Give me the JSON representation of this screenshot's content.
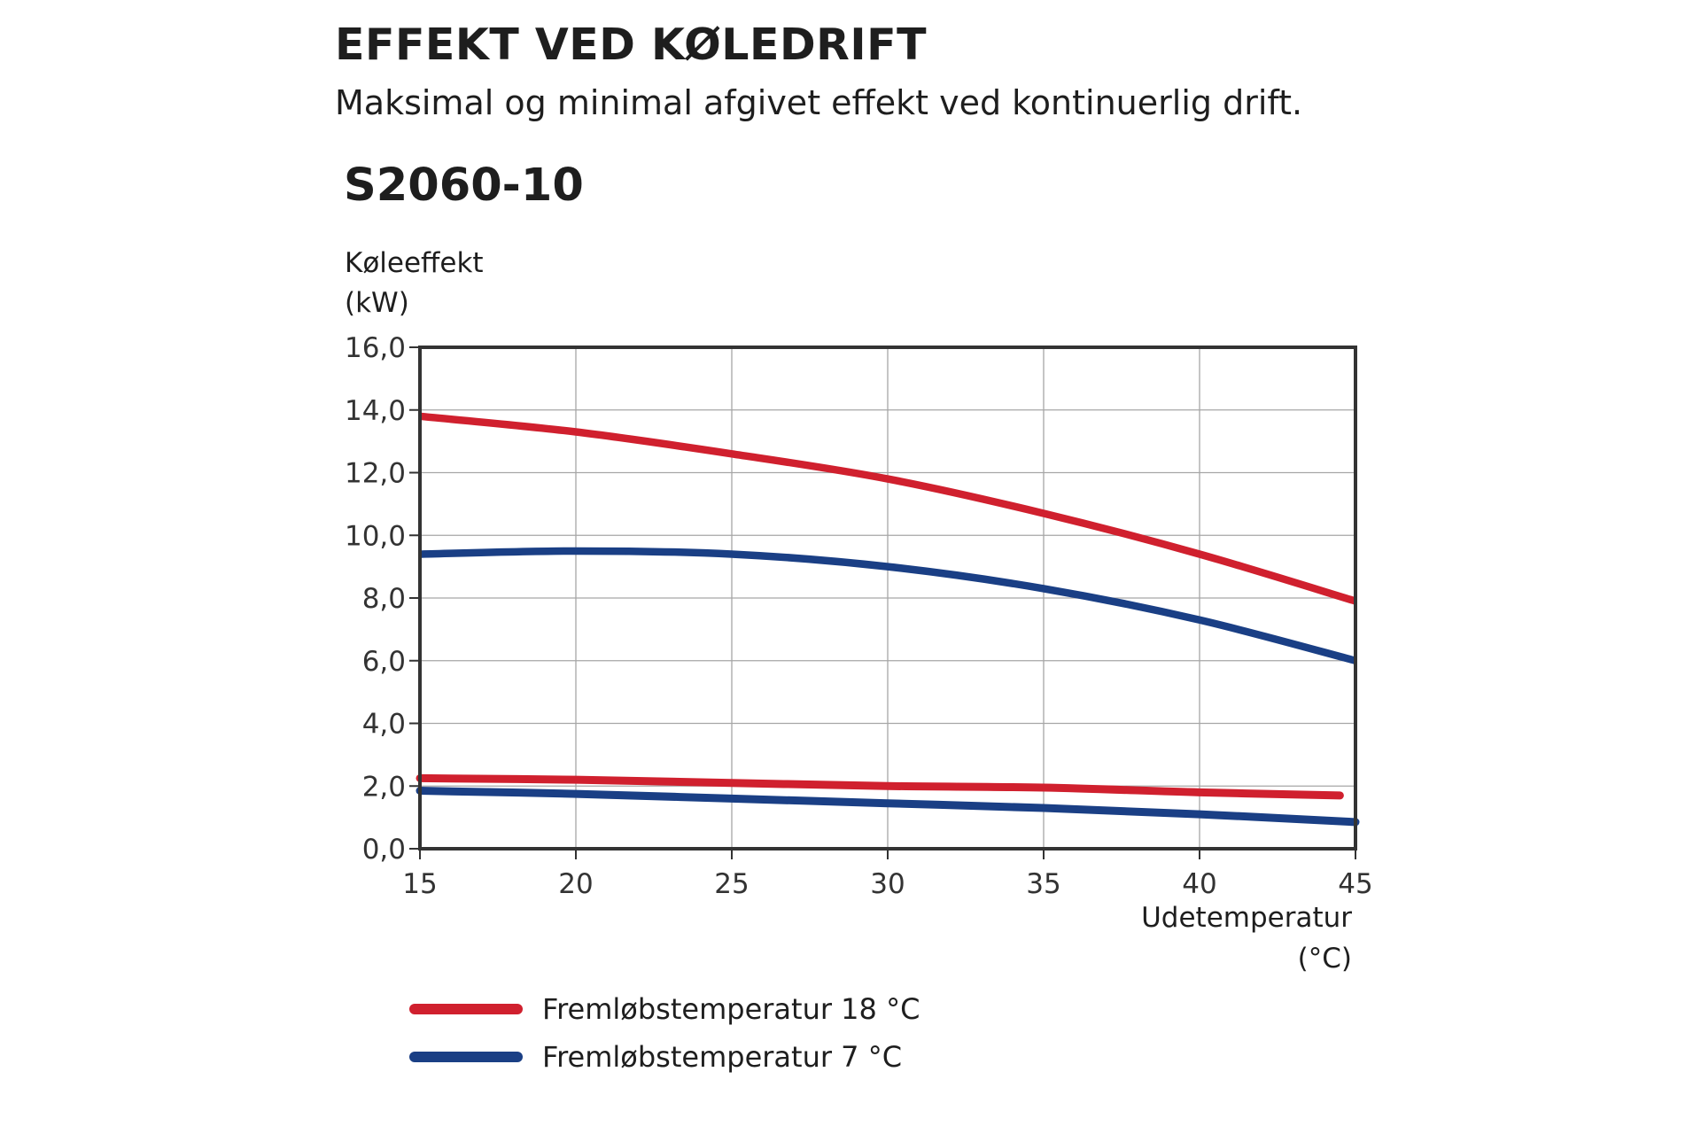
{
  "header": {
    "title": "EFFEKT VED KØLEDRIFT",
    "subtitle": "Maksimal og minimal afgivet effekt ved kontinuerlig drift.",
    "model": "S2060-10"
  },
  "colors": {
    "red": "#d0202e",
    "blue": "#1a3f85",
    "grid": "#a6a6a6",
    "axis": "#333333"
  },
  "chart_data": {
    "type": "line",
    "title": "S2060-10",
    "ylabel_line1": "Køleeffekt",
    "ylabel_line2": "(kW)",
    "xlabel_line1": "Udetemperatur",
    "xlabel_line2": "(°C)",
    "xlim": [
      15,
      45
    ],
    "ylim": [
      0,
      16
    ],
    "xticks": [
      15,
      20,
      25,
      30,
      35,
      40,
      45
    ],
    "xtick_labels": [
      "15",
      "20",
      "25",
      "30",
      "35",
      "40",
      "45"
    ],
    "yticks": [
      0,
      2,
      4,
      6,
      8,
      10,
      12,
      14,
      16
    ],
    "ytick_labels": [
      "0,0",
      "2,0",
      "4,0",
      "6,0",
      "8,0",
      "10,0",
      "12,0",
      "14,0",
      "16,0"
    ],
    "grid": true,
    "legend_position": "bottom-left",
    "series": [
      {
        "name": "Fremløbstemperatur 18 °C",
        "label": "max",
        "color": "#d0202e",
        "x": [
          15,
          20,
          25,
          30,
          35,
          40,
          45
        ],
        "y": [
          13.8,
          13.3,
          12.6,
          11.8,
          10.7,
          9.4,
          7.9
        ]
      },
      {
        "name": "Fremløbstemperatur 7 °C",
        "label": "max",
        "color": "#1a3f85",
        "x": [
          15,
          20,
          25,
          30,
          35,
          40,
          45
        ],
        "y": [
          9.4,
          9.5,
          9.4,
          9.0,
          8.3,
          7.3,
          6.0
        ]
      },
      {
        "name": "Fremløbstemperatur 18 °C",
        "label": "min",
        "color": "#d0202e",
        "x": [
          15,
          20,
          25,
          30,
          35,
          40,
          44.5
        ],
        "y": [
          2.25,
          2.2,
          2.1,
          2.0,
          1.95,
          1.8,
          1.7
        ]
      },
      {
        "name": "Fremløbstemperatur 7 °C",
        "label": "min",
        "color": "#1a3f85",
        "x": [
          15,
          20,
          25,
          30,
          35,
          40,
          45
        ],
        "y": [
          1.85,
          1.75,
          1.6,
          1.45,
          1.3,
          1.1,
          0.85
        ]
      }
    ]
  },
  "legend": {
    "items": [
      {
        "label": "Fremløbstemperatur 18 °C",
        "color": "#d0202e"
      },
      {
        "label": "Fremløbstemperatur 7 °C",
        "color": "#1a3f85"
      }
    ]
  }
}
